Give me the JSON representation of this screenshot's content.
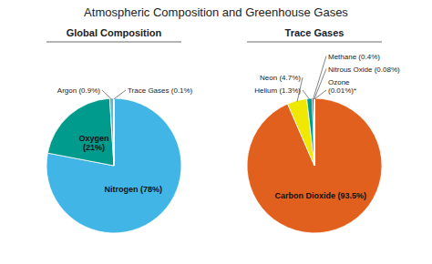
{
  "chart_data": [
    {
      "type": "pie",
      "title": "Atmospheric Composition and Greenhouse Gases",
      "subtitle": "Global Composition",
      "categories": [
        "Nitrogen (78%)",
        "Oxygen\n(21%)",
        "Argon (0.9%)",
        null,
        null,
        null
      ],
      "values": [
        78,
        21,
        0.9,
        0.033,
        0.033,
        0.034
      ],
      "colors": [
        "#41b6e6",
        "#009b8d",
        "#5bbccc",
        "#e63946",
        "#1f3d7a",
        "#f5f5f5"
      ],
      "annotations": [
        "Trace Gases (0.1%)"
      ]
    },
    {
      "type": "pie",
      "subtitle": "Trace Gases",
      "categories": [
        "Carbon Dioxide (93.5%)",
        "Neon (4.7%)",
        "Helium (1.3%)",
        "Methane (0.4%)",
        null,
        "Nitrous Oxide (0.08%)",
        "Ozone\n(0.01%)*"
      ],
      "values": [
        93.5,
        4.7,
        1.3,
        0.4,
        0.02,
        0.08,
        0.01
      ],
      "colors": [
        "#e2601e",
        "#f0e800",
        "#009b8d",
        "#1f3d7a",
        "#f5f5f5",
        "#4169e1",
        "#f5f5f5"
      ]
    }
  ]
}
